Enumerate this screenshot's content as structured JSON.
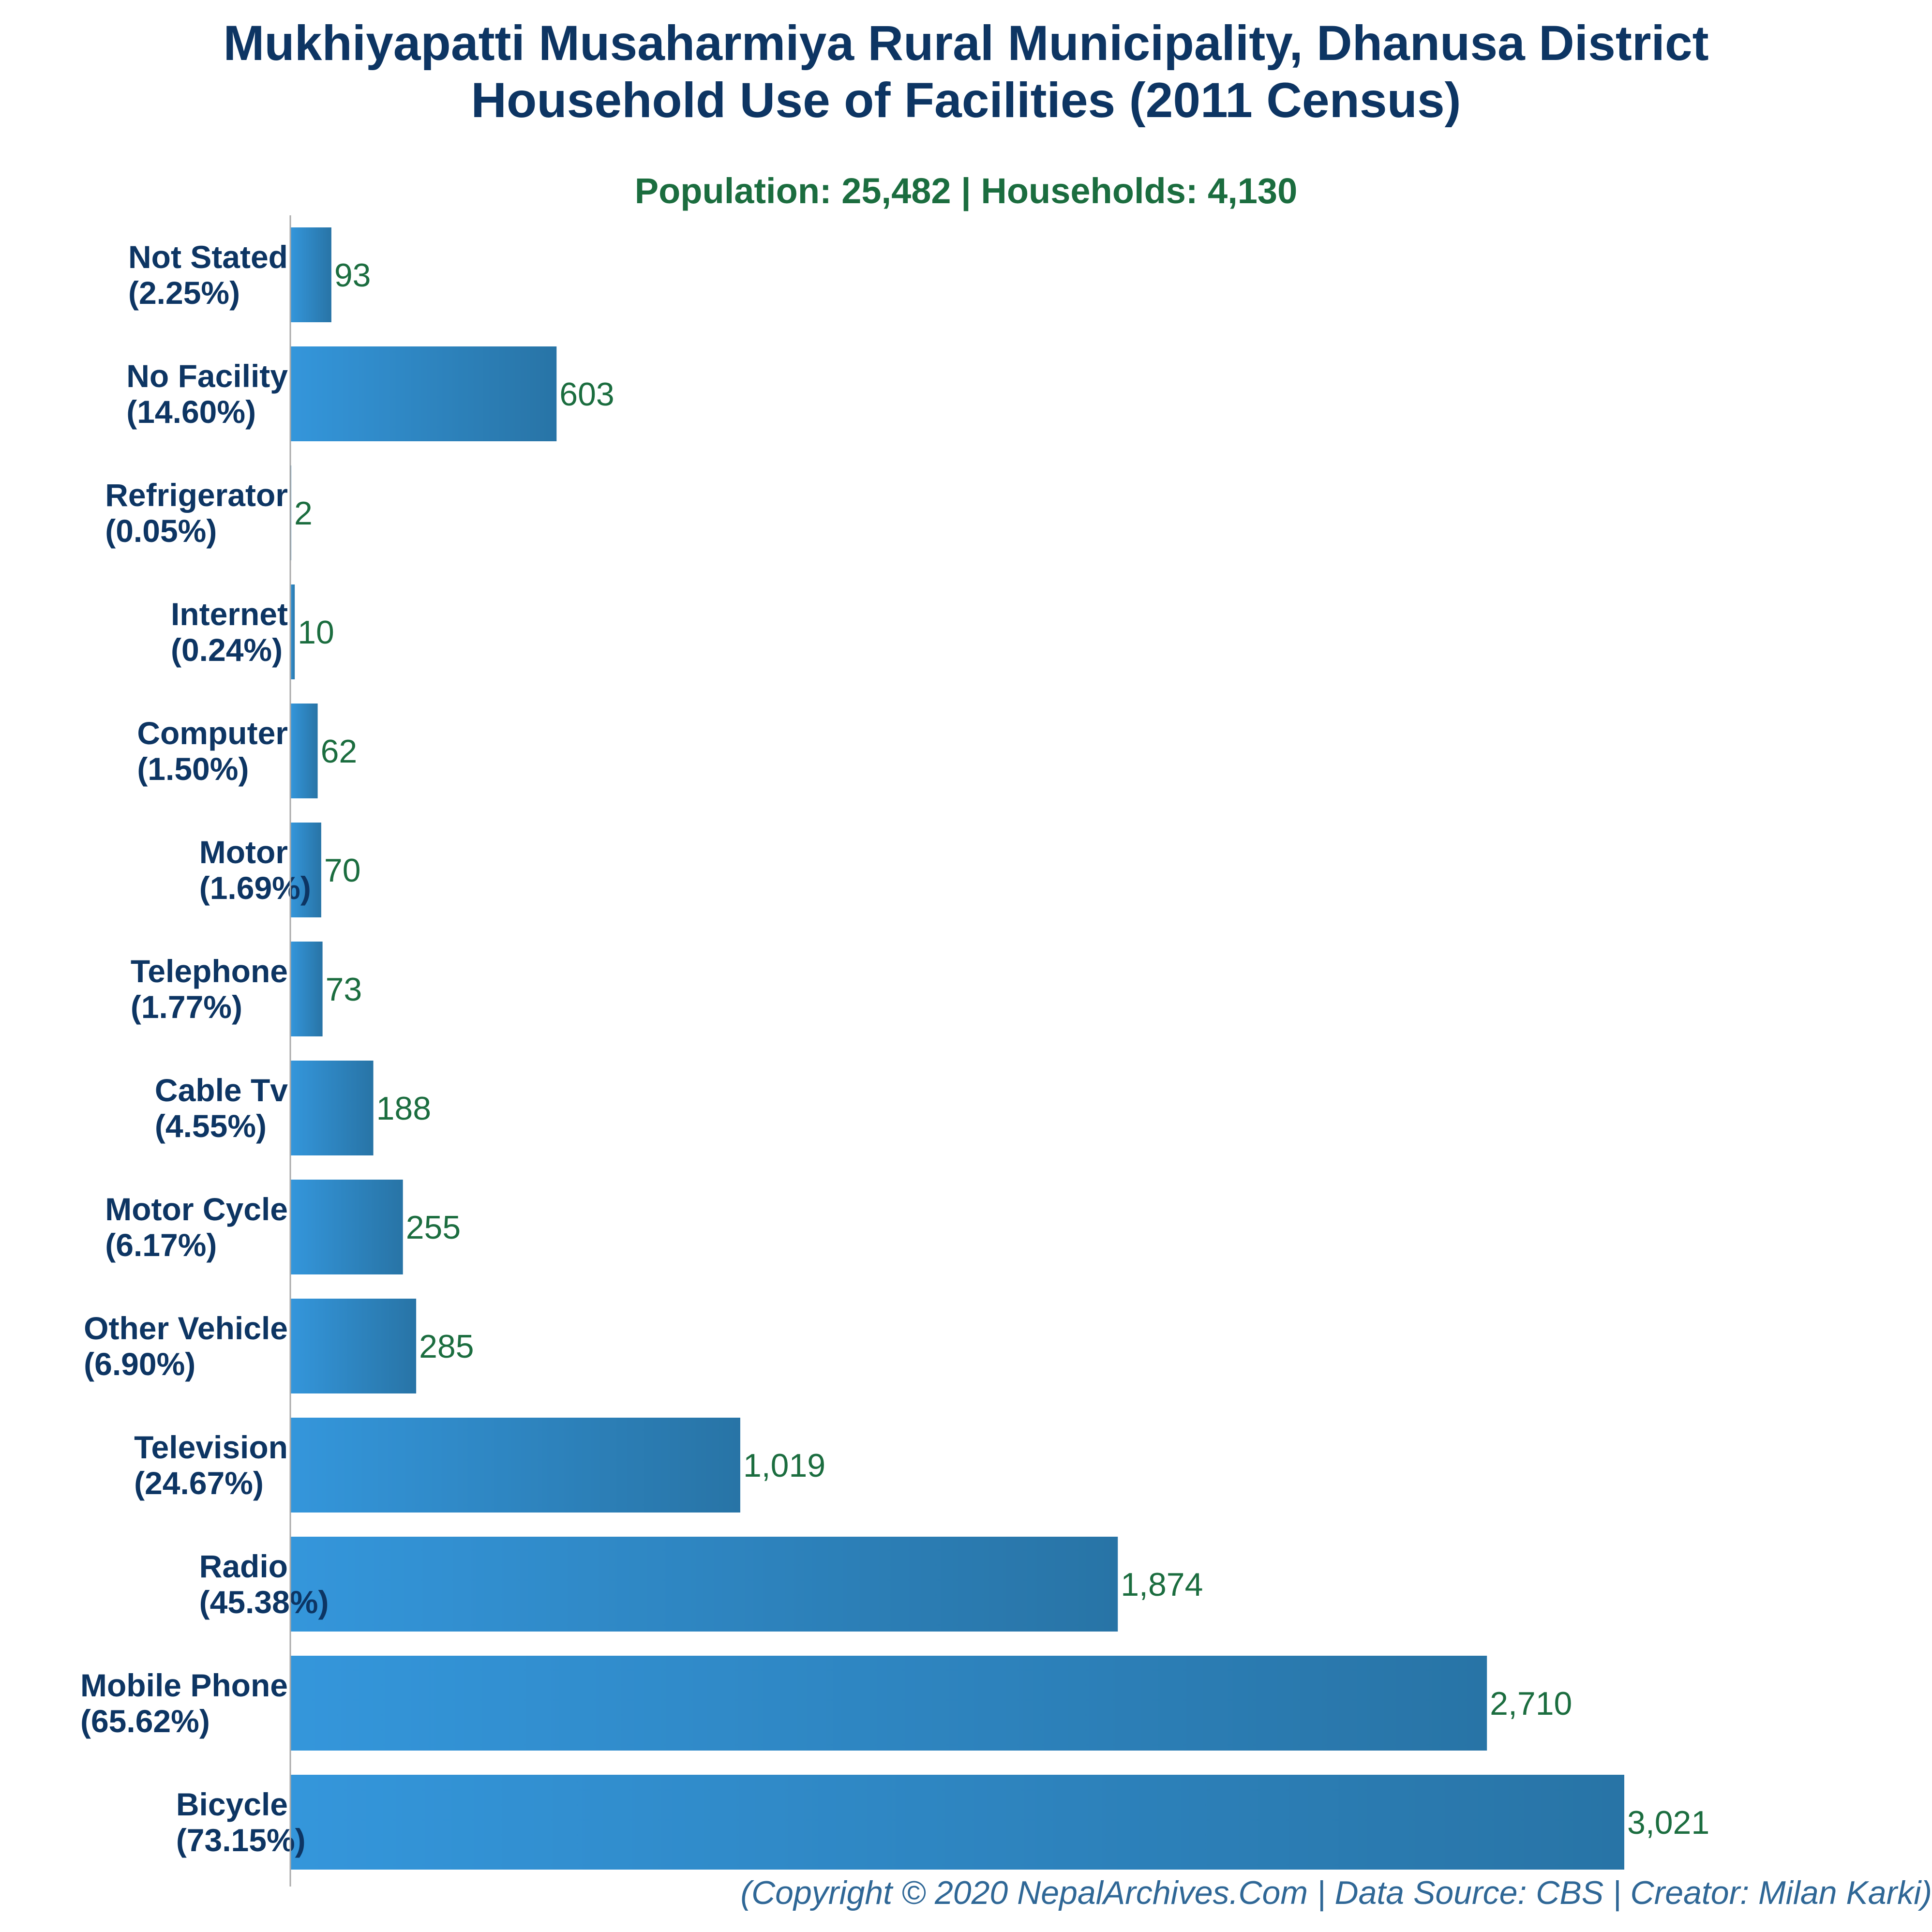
{
  "chart_data": {
    "type": "bar",
    "orientation": "horizontal",
    "title_lines": [
      "Mukhiyapatti Musaharmiya Rural Municipality, Dhanusa District",
      "Household Use of Facilities (2011 Census)"
    ],
    "subtitle": "Population: 25,482 | Households: 4,130",
    "categories": [
      {
        "name": "Not Stated",
        "pct": "(2.25%)",
        "value": 93,
        "value_label": "93"
      },
      {
        "name": "No Facility",
        "pct": "(14.60%)",
        "value": 603,
        "value_label": "603"
      },
      {
        "name": "Refrigerator",
        "pct": "(0.05%)",
        "value": 2,
        "value_label": "2"
      },
      {
        "name": "Internet",
        "pct": "(0.24%)",
        "value": 10,
        "value_label": "10"
      },
      {
        "name": "Computer",
        "pct": "(1.50%)",
        "value": 62,
        "value_label": "62"
      },
      {
        "name": "Motor",
        "pct": "(1.69%)",
        "value": 70,
        "value_label": "70"
      },
      {
        "name": "Telephone",
        "pct": "(1.77%)",
        "value": 73,
        "value_label": "73"
      },
      {
        "name": "Cable Tv",
        "pct": "(4.55%)",
        "value": 188,
        "value_label": "188"
      },
      {
        "name": "Motor Cycle",
        "pct": "(6.17%)",
        "value": 255,
        "value_label": "255"
      },
      {
        "name": "Other Vehicle",
        "pct": "(6.90%)",
        "value": 285,
        "value_label": "285"
      },
      {
        "name": "Television",
        "pct": "(24.67%)",
        "value": 1019,
        "value_label": "1,019"
      },
      {
        "name": "Radio",
        "pct": "(45.38%)",
        "value": 1874,
        "value_label": "1,874"
      },
      {
        "name": "Mobile Phone",
        "pct": "(65.62%)",
        "value": 2710,
        "value_label": "2,710"
      },
      {
        "name": "Bicycle",
        "pct": "(73.15%)",
        "value": 3021,
        "value_label": "3,021"
      }
    ],
    "xlim": [
      0,
      3021
    ],
    "grid": false,
    "colors": {
      "bar_light": "#3496db",
      "bar_dark": "#2874a6",
      "category_label": "#0d3563",
      "value_label": "#1b6d3f",
      "title": "#0d3563",
      "subtitle": "#1b6d3f",
      "footer": "#2f6796",
      "axis": "#aaaaaa"
    }
  },
  "footer": "(Copyright © 2020 NepalArchives.Com | Data Source: CBS | Creator: Milan Karki)"
}
